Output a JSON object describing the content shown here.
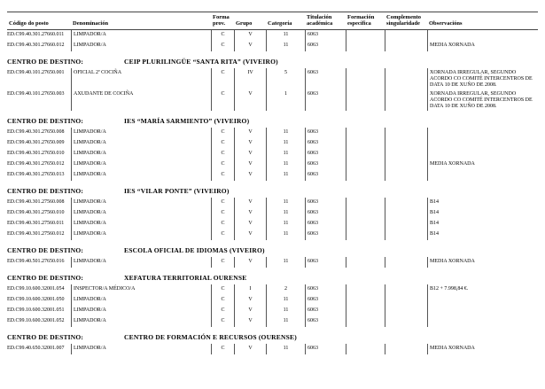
{
  "section_header_label": "CENTRO DE DESTINO:",
  "columns": [
    {
      "key": "codigo",
      "label": "Código do posto"
    },
    {
      "key": "denominacion",
      "label": "Denominación"
    },
    {
      "key": "forma",
      "label": "Forma prov."
    },
    {
      "key": "grupo",
      "label": "Grupo"
    },
    {
      "key": "categoria",
      "label": "Categoría"
    },
    {
      "key": "titulacion",
      "label": "Titulación académica"
    },
    {
      "key": "formacion",
      "label": "Formación específica"
    },
    {
      "key": "complemento",
      "label": "Complemento singularidade"
    },
    {
      "key": "observacions",
      "label": "Observacións"
    }
  ],
  "sections": [
    {
      "center": null,
      "rows": [
        {
          "codigo": "ED.C99.40.301.27660.011",
          "denominacion": "LIMPADOR/A",
          "forma": "C",
          "grupo": "V",
          "categoria": "11",
          "titulacion": "6063",
          "formacion": "",
          "complemento": "",
          "observacions": ""
        },
        {
          "codigo": "ED.C99.40.301.27660.012",
          "denominacion": "LIMPADOR/A",
          "forma": "C",
          "grupo": "V",
          "categoria": "11",
          "titulacion": "6063",
          "formacion": "",
          "complemento": "",
          "observacions": "MEDIA XORNADA"
        }
      ]
    },
    {
      "center": "CEIP PLURILINGÜE “SANTA RITA” (VIVEIRO)",
      "rows": [
        {
          "codigo": "ED.C99.40.101.27650.001",
          "denominacion": "OFICIAL 2ª COCIÑA",
          "forma": "C",
          "grupo": "IV",
          "categoria": "5",
          "titulacion": "6063",
          "formacion": "",
          "complemento": "",
          "observacions": "XORNADA IRREGULAR, SEGUNDO ACORDO CO COMITÉ INTERCENTROS DE DATA 10 DE XUÑO DE 2008."
        },
        {
          "codigo": "ED.C99.40.101.27650.003",
          "denominacion": "AXUDANTE DE COCIÑA",
          "forma": "C",
          "grupo": "V",
          "categoria": "1",
          "titulacion": "6063",
          "formacion": "",
          "complemento": "",
          "observacions": "XORNADA IRREGULAR, SEGUNDO ACORDO CO COMITÉ INTERCENTROS DE DATA 10 DE XUÑO DE 2008."
        }
      ]
    },
    {
      "center": "IES “MARÍA SARMIENTO” (VIVEIRO)",
      "rows": [
        {
          "codigo": "ED.C99.40.301.27650.008",
          "denominacion": "LIMPADOR/A",
          "forma": "C",
          "grupo": "V",
          "categoria": "11",
          "titulacion": "6063",
          "formacion": "",
          "complemento": "",
          "observacions": ""
        },
        {
          "codigo": "ED.C99.40.301.27650.009",
          "denominacion": "LIMPADOR/A",
          "forma": "C",
          "grupo": "V",
          "categoria": "11",
          "titulacion": "6063",
          "formacion": "",
          "complemento": "",
          "observacions": ""
        },
        {
          "codigo": "ED.C99.40.301.27650.010",
          "denominacion": "LIMPADOR/A",
          "forma": "C",
          "grupo": "V",
          "categoria": "11",
          "titulacion": "6063",
          "formacion": "",
          "complemento": "",
          "observacions": ""
        },
        {
          "codigo": "ED.C99.40.301.27650.012",
          "denominacion": "LIMPADOR/A",
          "forma": "C",
          "grupo": "V",
          "categoria": "11",
          "titulacion": "6063",
          "formacion": "",
          "complemento": "",
          "observacions": "MEDIA XORNADA"
        },
        {
          "codigo": "ED.C99.40.301.27650.013",
          "denominacion": "LIMPADOR/A",
          "forma": "C",
          "grupo": "V",
          "categoria": "11",
          "titulacion": "6063",
          "formacion": "",
          "complemento": "",
          "observacions": ""
        }
      ]
    },
    {
      "center": "IES “VILAR PONTE” (VIVEIRO)",
      "rows": [
        {
          "codigo": "ED.C99.40.301.27560.008",
          "denominacion": "LIMPADOR/A",
          "forma": "C",
          "grupo": "V",
          "categoria": "11",
          "titulacion": "6063",
          "formacion": "",
          "complemento": "",
          "observacions": "B14"
        },
        {
          "codigo": "ED.C99.40.301.27560.010",
          "denominacion": "LIMPADOR/A",
          "forma": "C",
          "grupo": "V",
          "categoria": "11",
          "titulacion": "6063",
          "formacion": "",
          "complemento": "",
          "observacions": "B14"
        },
        {
          "codigo": "ED.C99.40.301.27560.011",
          "denominacion": "LIMPADOR/A",
          "forma": "C",
          "grupo": "V",
          "categoria": "11",
          "titulacion": "6063",
          "formacion": "",
          "complemento": "",
          "observacions": "B14"
        },
        {
          "codigo": "ED.C99.40.301.27560.012",
          "denominacion": "LIMPADOR/A",
          "forma": "C",
          "grupo": "V",
          "categoria": "11",
          "titulacion": "6063",
          "formacion": "",
          "complemento": "",
          "observacions": "B14"
        }
      ]
    },
    {
      "center": "ESCOLA OFICIAL DE IDIOMAS (VIVEIRO)",
      "rows": [
        {
          "codigo": "ED.C99.40.501.27650.016",
          "denominacion": "LIMPADOR/A",
          "forma": "C",
          "grupo": "V",
          "categoria": "11",
          "titulacion": "6063",
          "formacion": "",
          "complemento": "",
          "observacions": "MEDIA XORNADA"
        }
      ]
    },
    {
      "center": "XEFATURA TERRITORIAL OURENSE",
      "rows": [
        {
          "codigo": "ED.C99.10.600.32001.054",
          "denominacion": "INSPECTOR/A MÉDICO/A",
          "forma": "C",
          "grupo": "I",
          "categoria": "2",
          "titulacion": "6063",
          "formacion": "",
          "complemento": "",
          "observacions": "B12 + 7.998,84 €."
        },
        {
          "codigo": "ED.C99.10.600.32001.050",
          "denominacion": "LIMPADOR/A",
          "forma": "C",
          "grupo": "V",
          "categoria": "11",
          "titulacion": "6063",
          "formacion": "",
          "complemento": "",
          "observacions": ""
        },
        {
          "codigo": "ED.C99.10.600.32001.051",
          "denominacion": "LIMPADOR/A",
          "forma": "C",
          "grupo": "V",
          "categoria": "11",
          "titulacion": "6063",
          "formacion": "",
          "complemento": "",
          "observacions": ""
        },
        {
          "codigo": "ED.C99.10.600.32001.052",
          "denominacion": "LIMPADOR/A",
          "forma": "C",
          "grupo": "V",
          "categoria": "11",
          "titulacion": "6063",
          "formacion": "",
          "complemento": "",
          "observacions": ""
        }
      ]
    },
    {
      "center": "CENTRO DE FORMACIÓN E RECURSOS (OURENSE)",
      "rows": [
        {
          "codigo": "ED.C99.40.650.32001.007",
          "denominacion": "LIMPADOR/A",
          "forma": "C",
          "grupo": "V",
          "categoria": "11",
          "titulacion": "6063",
          "formacion": "",
          "complemento": "",
          "observacions": "MEDIA XORNADA"
        }
      ]
    }
  ]
}
